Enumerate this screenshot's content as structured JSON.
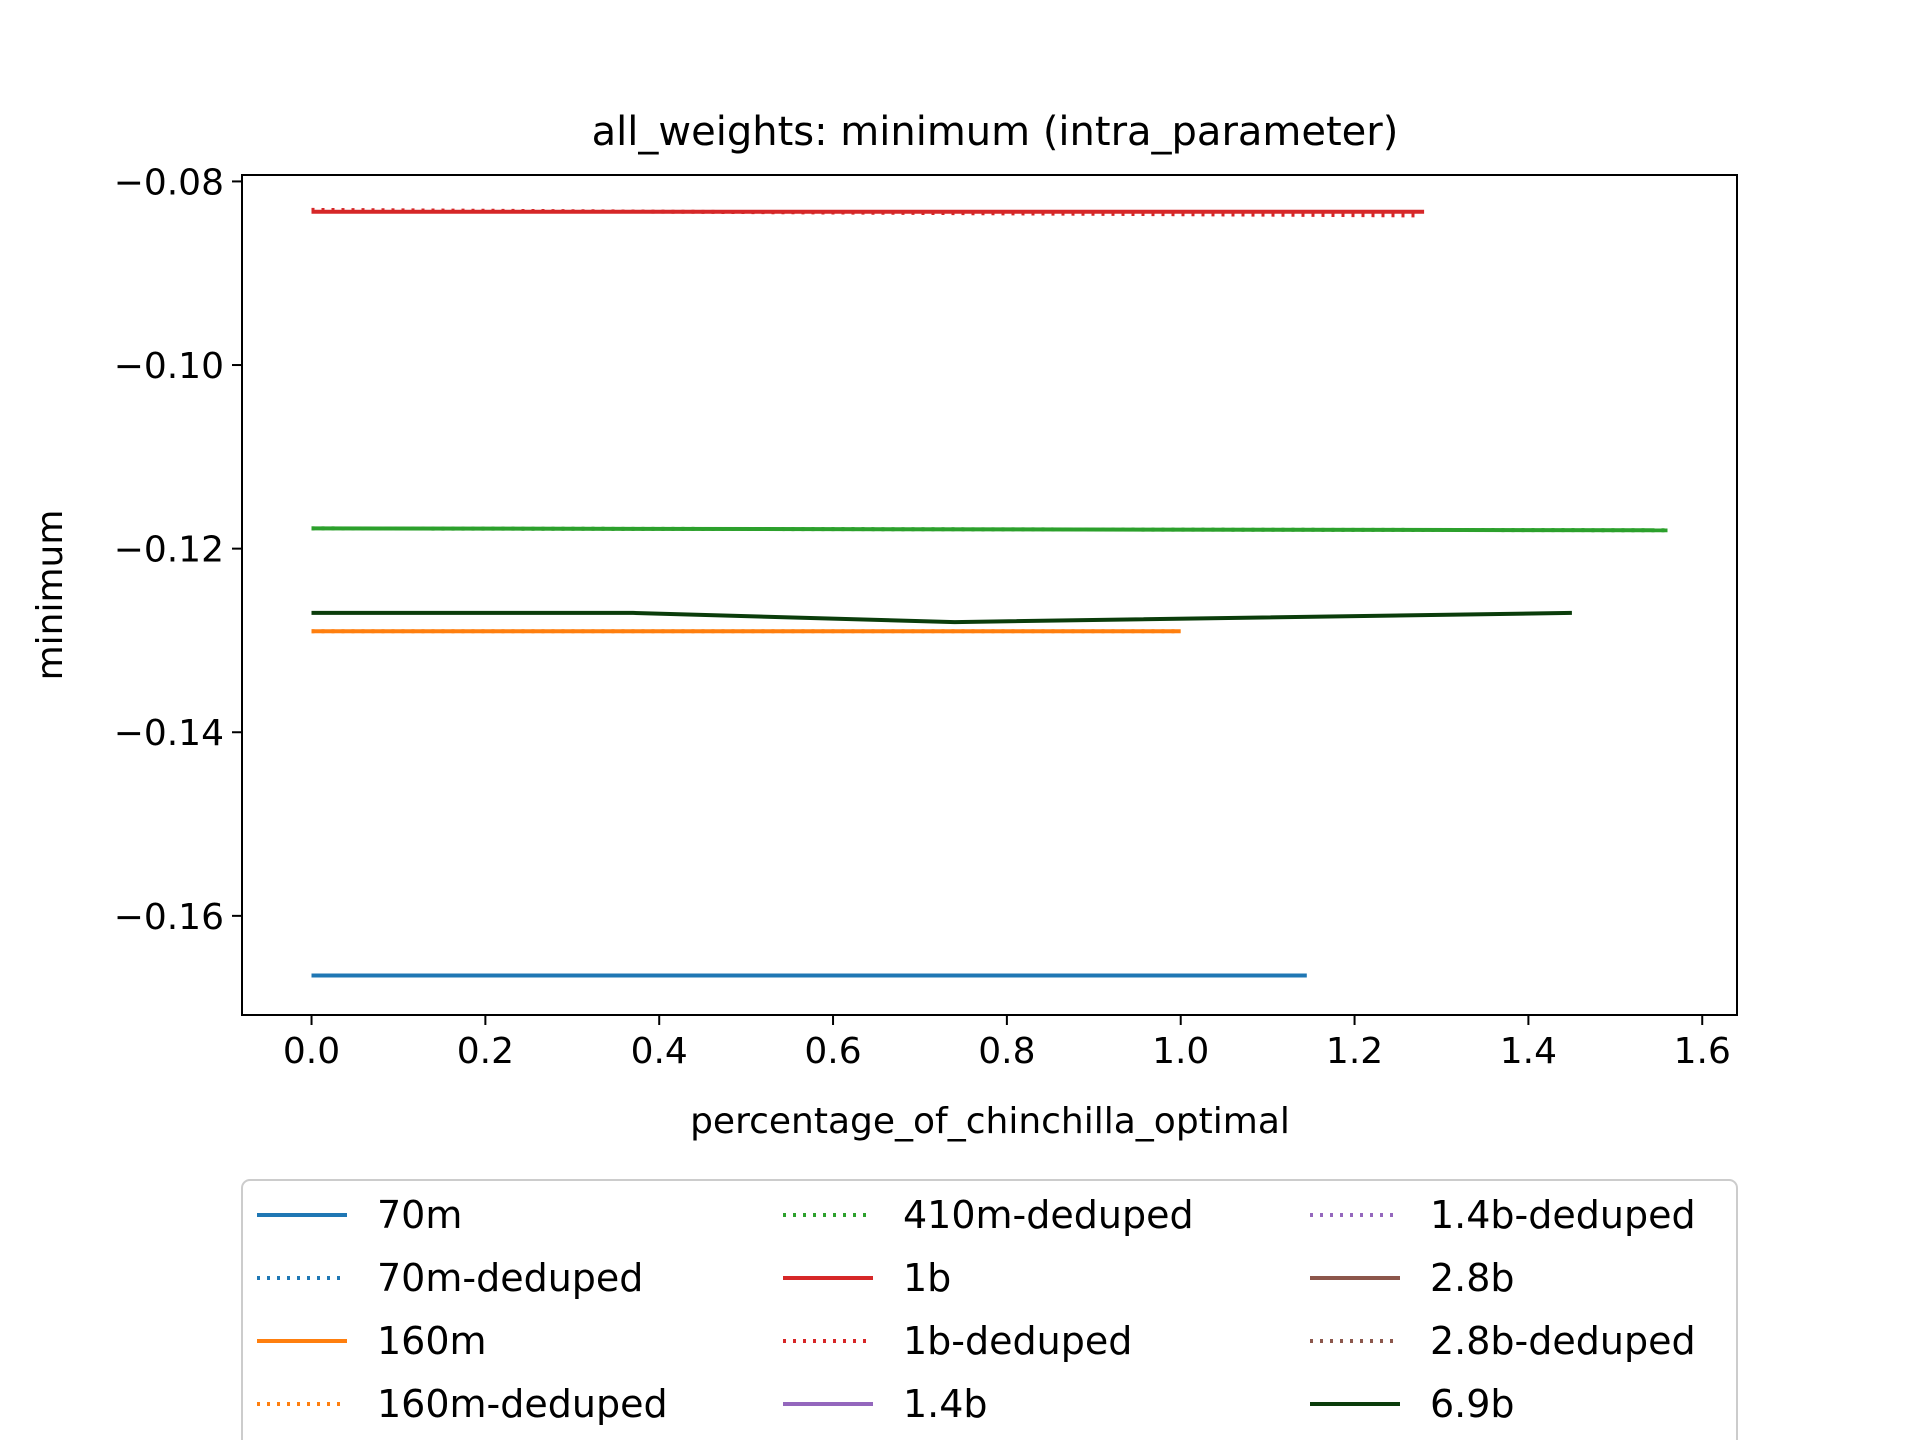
{
  "chart_data": {
    "type": "line",
    "title": "all_weights: minimum (intra_parameter)",
    "xlabel": "percentage_of_chinchilla_optimal",
    "ylabel": "minimum",
    "xlim": [
      -0.08,
      1.64
    ],
    "ylim": [
      -0.1708,
      -0.0793
    ],
    "xticks": [
      0.0,
      0.2,
      0.4,
      0.6,
      0.8,
      1.0,
      1.2,
      1.4,
      1.6
    ],
    "xtick_labels": [
      "0.0",
      "0.2",
      "0.4",
      "0.6",
      "0.8",
      "1.0",
      "1.2",
      "1.4",
      "1.6"
    ],
    "yticks": [
      -0.08,
      -0.1,
      -0.12,
      -0.14,
      -0.16
    ],
    "ytick_labels": [
      "−0.08",
      "−0.10",
      "−0.12",
      "−0.14",
      "−0.16"
    ],
    "grid": false,
    "legend_position": "bottom",
    "series": [
      {
        "name": "70m",
        "color": "#1f77b4",
        "style": "solid",
        "x": [
          0.0,
          1.145
        ],
        "y": [
          -0.1665,
          -0.1665
        ]
      },
      {
        "name": "70m-deduped",
        "color": "#1f77b4",
        "style": "dotted",
        "x": [
          0.0,
          1.145
        ],
        "y": [
          -0.1665,
          -0.1665
        ]
      },
      {
        "name": "160m",
        "color": "#ff7f0e",
        "style": "solid",
        "x": [
          0.0,
          1.0
        ],
        "y": [
          -0.129,
          -0.129
        ]
      },
      {
        "name": "160m-deduped",
        "color": "#ff7f0e",
        "style": "dotted",
        "x": [
          0.0,
          1.0
        ],
        "y": [
          -0.129,
          -0.129
        ]
      },
      {
        "name": "410m-deduped",
        "color": "#2ca02c",
        "style": "dotted",
        "x": [
          0.0,
          1.56
        ],
        "y": [
          -0.1178,
          -0.118
        ]
      },
      {
        "name": "1b",
        "color": "#d62728",
        "style": "solid",
        "x": [
          0.0,
          1.28
        ],
        "y": [
          -0.0833,
          -0.0833
        ]
      },
      {
        "name": "1b-deduped",
        "color": "#d62728",
        "style": "dotted",
        "x": [
          0.0,
          1.27
        ],
        "y": [
          -0.0831,
          -0.0837
        ]
      },
      {
        "name": "1.4b",
        "color": "#9467bd",
        "style": "solid",
        "x": [],
        "y": []
      },
      {
        "name": "1.4b-deduped",
        "color": "#9467bd",
        "style": "dotted",
        "x": [],
        "y": []
      },
      {
        "name": "2.8b",
        "color": "#8c564b",
        "style": "solid",
        "x": [],
        "y": []
      },
      {
        "name": "2.8b-deduped",
        "color": "#8c564b",
        "style": "dotted",
        "x": [],
        "y": []
      },
      {
        "name": "6.9b",
        "color": "#0b3d0b",
        "style": "solid",
        "x": [
          0.0,
          0.37,
          0.74,
          1.45
        ],
        "y": [
          -0.127,
          -0.127,
          -0.128,
          -0.127
        ]
      }
    ],
    "unlabeled_series": [
      {
        "color": "#2ca02c",
        "style": "solid",
        "x": [
          0.0,
          1.56
        ],
        "y": [
          -0.1178,
          -0.118
        ]
      }
    ]
  }
}
